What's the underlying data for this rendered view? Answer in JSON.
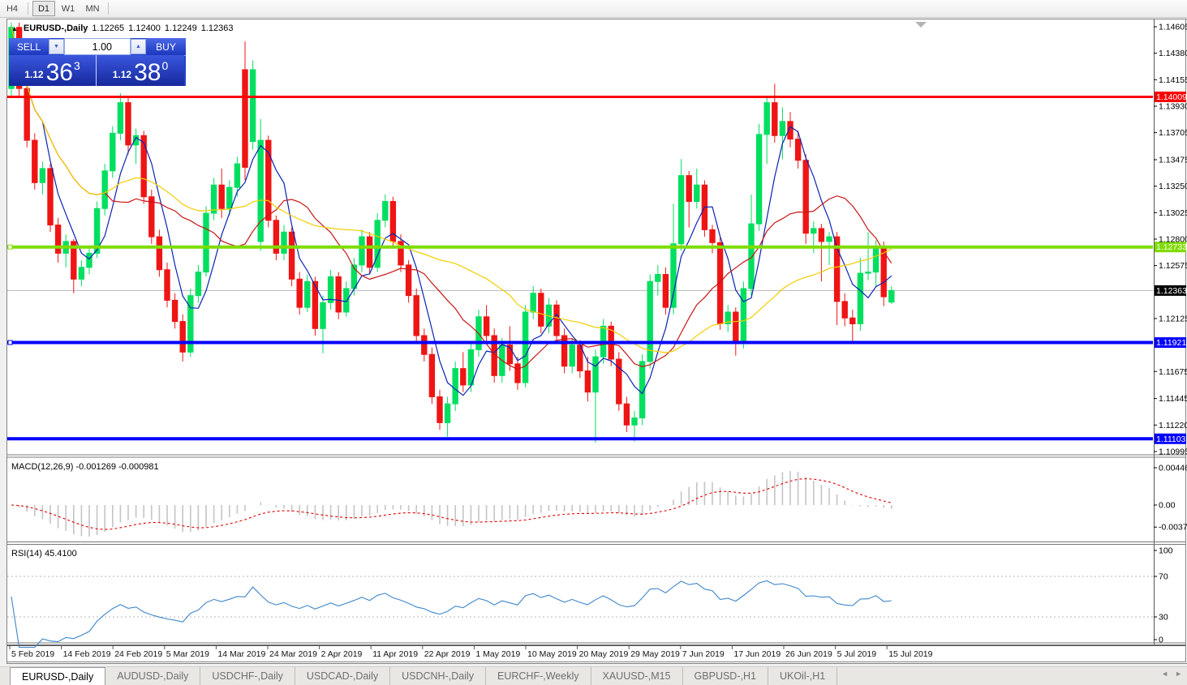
{
  "toolbar": {
    "buttons": [
      {
        "label": "H4",
        "active": false
      },
      {
        "label": "D1",
        "active": true
      },
      {
        "label": "W1",
        "active": false
      },
      {
        "label": "MN",
        "active": false
      }
    ]
  },
  "header": {
    "collapse_icon": "▲",
    "symbol": "EURUSD-,Daily",
    "open": "1.12265",
    "high": "1.12400",
    "low": "1.12249",
    "close": "1.12363"
  },
  "one_click": {
    "sell_label": "SELL",
    "buy_label": "BUY",
    "volume": "1.00",
    "spin_down_icon": "▼",
    "spin_up_icon": "▲",
    "sell_price": {
      "prefix": "1.12",
      "big": "36",
      "sup": "3"
    },
    "buy_price": {
      "prefix": "1.12",
      "big": "38",
      "sup": "0"
    }
  },
  "macd": {
    "label": "MACD(12,26,9) -0.001269 -0.000981",
    "axis": [
      "0.004465",
      "0.00",
      "-0.003715"
    ],
    "axis_values": [
      0.004465,
      0,
      -0.003715
    ]
  },
  "rsi": {
    "label": "RSI(14) 45.4100",
    "axis": [
      "100",
      "70",
      "30",
      "0"
    ],
    "axis_values": [
      100,
      70,
      30,
      0
    ],
    "levels": [
      70,
      30
    ],
    "current": 45.41
  },
  "colors": {
    "bull": "#00df60",
    "bear": "#ef1515",
    "ma_fast": "#0a23b4",
    "ma_mid": "#c81414",
    "ma_slow": "#f2ce00",
    "macd_hist": "#c4c4c4",
    "macd_signal": "#e00000",
    "rsi_line": "#3e86ca",
    "level_dash": "#b5b5b5",
    "axis_text": "#000000",
    "current_line": "#b8b8b8"
  },
  "chart_data": {
    "type": "candlestick",
    "symbol": "EURUSD-",
    "timeframe": "Daily",
    "y_ticks": [
      "1.14605",
      "1.14380",
      "1.14155",
      "1.13930",
      "1.13705",
      "1.13475",
      "1.13250",
      "1.13025",
      "1.12800",
      "1.12575",
      "1.12125",
      "1.11675",
      "1.11445",
      "1.11220",
      "1.10995"
    ],
    "x_labels": [
      "5 Feb 2019",
      "14 Feb 2019",
      "24 Feb 2019",
      "5 Mar 2019",
      "14 Mar 2019",
      "24 Mar 2019",
      "2 Apr 2019",
      "11 Apr 2019",
      "22 Apr 2019",
      "1 May 2019",
      "10 May 2019",
      "20 May 2019",
      "29 May 2019",
      "7 Jun 2019",
      "17 Jun 2019",
      "26 Jun 2019",
      "5 Jul 2019",
      "15 Jul 2019"
    ],
    "hlines": [
      {
        "price": 1.14009,
        "label": "1.14009",
        "color": "#ff0000",
        "width": 3,
        "handle": false
      },
      {
        "price": 1.12733,
        "label": "1.12733",
        "color": "#7fdc00",
        "width": 4,
        "handle": true
      },
      {
        "price": 1.11921,
        "label": "1.11921",
        "color": "#0000ff",
        "width": 4,
        "handle": true
      },
      {
        "price": 1.11103,
        "label": "1.11103",
        "color": "#0000ff",
        "width": 4,
        "handle": false
      }
    ],
    "current_price": {
      "value": 1.12363,
      "label": "1.12363"
    },
    "overlays": [
      {
        "name": "SMA fast",
        "period": 5,
        "color": "#0a23b4"
      },
      {
        "name": "SMA mid",
        "period": 13,
        "color": "#c81414"
      },
      {
        "name": "SMA slow",
        "period": 34,
        "color": "#f2ce00"
      }
    ],
    "candles": [
      [
        1.1408,
        1.1464,
        1.1402,
        1.146
      ],
      [
        1.146,
        1.1464,
        1.1402,
        1.1408
      ],
      [
        1.1408,
        1.1415,
        1.1358,
        1.1364
      ],
      [
        1.1364,
        1.137,
        1.1322,
        1.1328
      ],
      [
        1.1328,
        1.1346,
        1.1318,
        1.134
      ],
      [
        1.134,
        1.1344,
        1.1286,
        1.1292
      ],
      [
        1.1292,
        1.1298,
        1.126,
        1.1268
      ],
      [
        1.1268,
        1.1284,
        1.1256,
        1.1278
      ],
      [
        1.1278,
        1.128,
        1.1234,
        1.1246
      ],
      [
        1.1246,
        1.1262,
        1.124,
        1.1256
      ],
      [
        1.1256,
        1.1274,
        1.125,
        1.1268
      ],
      [
        1.1268,
        1.1312,
        1.1264,
        1.1306
      ],
      [
        1.1306,
        1.1344,
        1.13,
        1.1338
      ],
      [
        1.1338,
        1.1376,
        1.1332,
        1.137
      ],
      [
        1.137,
        1.1404,
        1.1364,
        1.1396
      ],
      [
        1.1396,
        1.1402,
        1.1352,
        1.136
      ],
      [
        1.136,
        1.1374,
        1.1344,
        1.1368
      ],
      [
        1.1368,
        1.1372,
        1.131,
        1.1316
      ],
      [
        1.1316,
        1.1322,
        1.1276,
        1.1282
      ],
      [
        1.1282,
        1.1288,
        1.1248,
        1.1254
      ],
      [
        1.1254,
        1.126,
        1.1222,
        1.1228
      ],
      [
        1.1228,
        1.1234,
        1.1204,
        1.121
      ],
      [
        1.121,
        1.1216,
        1.1176,
        1.1184
      ],
      [
        1.1184,
        1.1238,
        1.118,
        1.1232
      ],
      [
        1.1232,
        1.1258,
        1.1226,
        1.1252
      ],
      [
        1.1252,
        1.1308,
        1.1248,
        1.1302
      ],
      [
        1.1302,
        1.1332,
        1.1296,
        1.1326
      ],
      [
        1.1326,
        1.134,
        1.1298,
        1.1306
      ],
      [
        1.1306,
        1.133,
        1.13,
        1.1324
      ],
      [
        1.1324,
        1.135,
        1.1316,
        1.1344
      ],
      [
        1.1424,
        1.1448,
        1.133,
        1.1341
      ],
      [
        1.1363,
        1.1432,
        1.1356,
        1.1424
      ],
      [
        1.1278,
        1.1382,
        1.127,
        1.1364
      ],
      [
        1.1364,
        1.1368,
        1.129,
        1.1296
      ],
      [
        1.1296,
        1.13,
        1.1262,
        1.1268
      ],
      [
        1.1268,
        1.1292,
        1.1262,
        1.1286
      ],
      [
        1.1286,
        1.129,
        1.124,
        1.1246
      ],
      [
        1.1246,
        1.1252,
        1.1216,
        1.1222
      ],
      [
        1.1222,
        1.125,
        1.1218,
        1.1244
      ],
      [
        1.1244,
        1.1248,
        1.1198,
        1.1204
      ],
      [
        1.1204,
        1.1232,
        1.1183,
        1.1226
      ],
      [
        1.1226,
        1.1254,
        1.122,
        1.1248
      ],
      [
        1.1248,
        1.1252,
        1.1212,
        1.1218
      ],
      [
        1.1218,
        1.1244,
        1.1214,
        1.1238
      ],
      [
        1.1238,
        1.1264,
        1.1232,
        1.1258
      ],
      [
        1.1258,
        1.1288,
        1.1252,
        1.1282
      ],
      [
        1.1282,
        1.1286,
        1.125,
        1.1256
      ],
      [
        1.1256,
        1.1302,
        1.1252,
        1.1296
      ],
      [
        1.1296,
        1.1318,
        1.129,
        1.1312
      ],
      [
        1.1312,
        1.1316,
        1.1272,
        1.1278
      ],
      [
        1.1278,
        1.1284,
        1.1252,
        1.1258
      ],
      [
        1.1258,
        1.1262,
        1.1226,
        1.1232
      ],
      [
        1.1232,
        1.1238,
        1.1192,
        1.1198
      ],
      [
        1.1198,
        1.1204,
        1.1176,
        1.1182
      ],
      [
        1.1182,
        1.1188,
        1.114,
        1.1146
      ],
      [
        1.1146,
        1.1152,
        1.1118,
        1.1124
      ],
      [
        1.1124,
        1.1146,
        1.1112,
        1.114
      ],
      [
        1.114,
        1.1176,
        1.1134,
        1.117
      ],
      [
        1.117,
        1.1184,
        1.115,
        1.1156
      ],
      [
        1.1156,
        1.1192,
        1.115,
        1.1186
      ],
      [
        1.1186,
        1.122,
        1.118,
        1.1214
      ],
      [
        1.1214,
        1.1224,
        1.1192,
        1.1198
      ],
      [
        1.1198,
        1.1204,
        1.1158,
        1.1164
      ],
      [
        1.1164,
        1.1196,
        1.1158,
        1.119
      ],
      [
        1.119,
        1.1206,
        1.1168,
        1.1174
      ],
      [
        1.1174,
        1.118,
        1.1152,
        1.1158
      ],
      [
        1.1158,
        1.1224,
        1.1154,
        1.1218
      ],
      [
        1.1218,
        1.124,
        1.1212,
        1.1234
      ],
      [
        1.1234,
        1.1238,
        1.12,
        1.1206
      ],
      [
        1.1206,
        1.123,
        1.12,
        1.1224
      ],
      [
        1.1224,
        1.1228,
        1.1192,
        1.1198
      ],
      [
        1.1198,
        1.1204,
        1.1166,
        1.1172
      ],
      [
        1.1172,
        1.1196,
        1.1166,
        1.119
      ],
      [
        1.119,
        1.1194,
        1.1162,
        1.1168
      ],
      [
        1.1168,
        1.118,
        1.1142,
        1.115
      ],
      [
        1.115,
        1.1186,
        1.1107,
        1.118
      ],
      [
        1.118,
        1.1212,
        1.1174,
        1.1206
      ],
      [
        1.1206,
        1.121,
        1.1172,
        1.1178
      ],
      [
        1.1178,
        1.1184,
        1.1134,
        1.114
      ],
      [
        1.114,
        1.1146,
        1.1116,
        1.1122
      ],
      [
        1.1122,
        1.1134,
        1.1108,
        1.1128
      ],
      [
        1.1128,
        1.1182,
        1.1122,
        1.1176
      ],
      [
        1.1176,
        1.125,
        1.117,
        1.1244
      ],
      [
        1.1244,
        1.1258,
        1.1232,
        1.125
      ],
      [
        1.125,
        1.1256,
        1.1216,
        1.1222
      ],
      [
        1.1222,
        1.131,
        1.1216,
        1.1276
      ],
      [
        1.1276,
        1.1348,
        1.127,
        1.1334
      ],
      [
        1.1334,
        1.1338,
        1.129,
        1.1312
      ],
      [
        1.1312,
        1.134,
        1.1306,
        1.1326
      ],
      [
        1.1326,
        1.133,
        1.1282,
        1.1288
      ],
      [
        1.1288,
        1.1292,
        1.1268,
        1.1277
      ],
      [
        1.1277,
        1.1282,
        1.1203,
        1.1208
      ],
      [
        1.1208,
        1.1224,
        1.1201,
        1.1218
      ],
      [
        1.1218,
        1.1222,
        1.1181,
        1.1193
      ],
      [
        1.1193,
        1.1244,
        1.1187,
        1.1238
      ],
      [
        1.1238,
        1.1318,
        1.1232,
        1.1293
      ],
      [
        1.1293,
        1.1378,
        1.1287,
        1.1369
      ],
      [
        1.1369,
        1.14,
        1.1344,
        1.1396
      ],
      [
        1.1396,
        1.1412,
        1.1362,
        1.1368
      ],
      [
        1.1368,
        1.1392,
        1.1348,
        1.138
      ],
      [
        1.138,
        1.1388,
        1.1358,
        1.1365
      ],
      [
        1.1365,
        1.1372,
        1.134,
        1.1347
      ],
      [
        1.1347,
        1.1352,
        1.1276,
        1.1285
      ],
      [
        1.1285,
        1.1295,
        1.1268,
        1.1289
      ],
      [
        1.1289,
        1.1293,
        1.1244,
        1.1278
      ],
      [
        1.1278,
        1.1286,
        1.1258,
        1.1282
      ],
      [
        1.1282,
        1.1286,
        1.1207,
        1.1227
      ],
      [
        1.1227,
        1.1234,
        1.1206,
        1.1213
      ],
      [
        1.1213,
        1.122,
        1.1193,
        1.1208
      ],
      [
        1.1208,
        1.1264,
        1.1202,
        1.1251
      ],
      [
        1.1251,
        1.1286,
        1.1245,
        1.1252
      ],
      [
        1.1252,
        1.1279,
        1.1239,
        1.1274
      ],
      [
        1.1274,
        1.1278,
        1.1223,
        1.1231
      ],
      [
        1.12265,
        1.124,
        1.12249,
        1.12363
      ]
    ]
  },
  "tabs": {
    "nav_left": "◄",
    "nav_right": "►",
    "items": [
      {
        "label": "EURUSD-,Daily",
        "active": true
      },
      {
        "label": "AUDUSD-,Daily",
        "active": false
      },
      {
        "label": "USDCHF-,Daily",
        "active": false
      },
      {
        "label": "USDCAD-,Daily",
        "active": false
      },
      {
        "label": "USDCNH-,Daily",
        "active": false
      },
      {
        "label": "EURCHF-,Weekly",
        "active": false
      },
      {
        "label": "XAUUSD-,M15",
        "active": false
      },
      {
        "label": "GBPUSD-,H1",
        "active": false
      },
      {
        "label": "UKOil-,H1",
        "active": false
      }
    ]
  }
}
